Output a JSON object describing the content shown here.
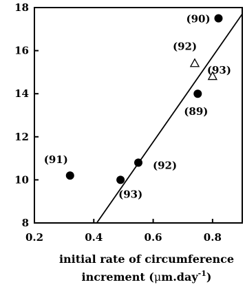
{
  "chart_data": {
    "type": "scatter",
    "title": "",
    "xlabel_line1": "initial rate of circumference",
    "xlabel_line2_prefix": "increment (",
    "xlabel_mu": "μ",
    "xlabel_line2_unit": "m.day",
    "xlabel_sup": "-1",
    "xlabel_line2_suffix": ")",
    "ylabel": "",
    "xlim": [
      0.2,
      0.9
    ],
    "ylim": [
      8,
      18
    ],
    "xticks": [
      0.2,
      0.4,
      0.6,
      0.8
    ],
    "xtick_labels": [
      "0.2",
      "0.4",
      "0.6",
      "0.8"
    ],
    "yticks": [
      8,
      10,
      12,
      14,
      16,
      18
    ],
    "ytick_labels": [
      "8",
      "10",
      "12",
      "14",
      "16",
      "18"
    ],
    "grid": false,
    "series": [
      {
        "marker": "filled-circle",
        "points": [
          {
            "x": 0.82,
            "y": 17.5,
            "label": "(90)"
          },
          {
            "x": 0.75,
            "y": 14.0,
            "label": "(89)"
          },
          {
            "x": 0.55,
            "y": 10.8,
            "label": "(92)"
          },
          {
            "x": 0.49,
            "y": 10.0,
            "label": "(93)"
          },
          {
            "x": 0.32,
            "y": 10.2,
            "label": "(91)"
          }
        ]
      },
      {
        "marker": "open-triangle",
        "points": [
          {
            "x": 0.74,
            "y": 15.4,
            "label": "(92)"
          },
          {
            "x": 0.8,
            "y": 14.8,
            "label": "(93)"
          }
        ]
      }
    ],
    "fit_line": {
      "x": [
        0.41,
        0.9
      ],
      "y": [
        8.0,
        17.7
      ]
    }
  }
}
